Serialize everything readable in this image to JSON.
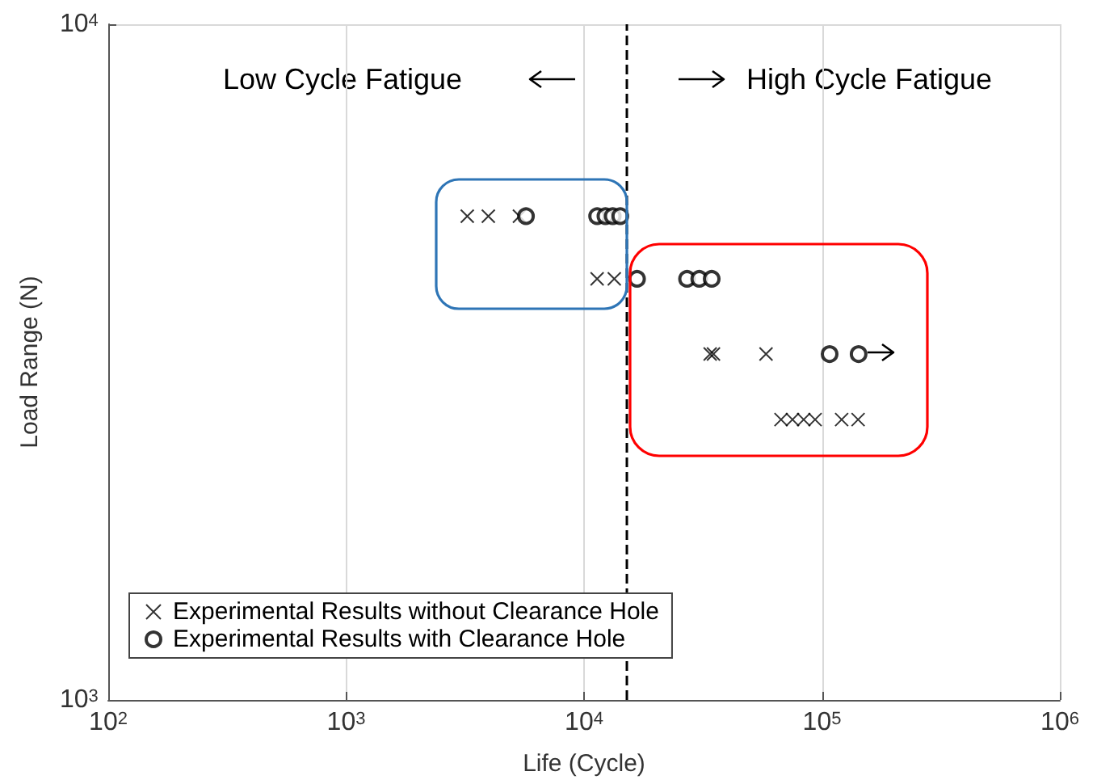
{
  "chart_data": {
    "type": "scatter",
    "xlabel": "Life (Cycle)",
    "ylabel": "Load Range (N)",
    "log": "xy",
    "grid": true,
    "legend": "bottom left",
    "xlim": [
      100,
      1000000
    ],
    "xticks": [
      {
        "value": 100,
        "label": "10$^{2}$"
      },
      {
        "value": 1000,
        "label": "10$^{3}$"
      },
      {
        "value": 10000,
        "label": "10$^{4}$"
      },
      {
        "value": 100000,
        "label": "10$^{5}$"
      },
      {
        "value": 1000000,
        "label": "10$^{6}$"
      }
    ],
    "ylim": [
      1000,
      10000
    ],
    "yticks": [
      {
        "value": 1000,
        "label": "10$^{3}$"
      },
      {
        "value": 10000,
        "label": "10$^{4}$"
      }
    ],
    "series": [
      {
        "name": "Experimental Results without Clearance Hole",
        "color": "#000000",
        "marker": "cross",
        "x": [
          3230,
          3960,
          5350,
          11350,
          13400,
          33900,
          35000,
          58200,
          67300,
          75200,
          83800,
          93600,
          121000,
          141900
        ],
        "values": [
          5200,
          5200,
          5200,
          4200,
          4200,
          3250,
          3250,
          3250,
          2600,
          2600,
          2600,
          2600,
          2600,
          2600
        ]
      },
      {
        "name": "Experimental Results with Clearance Hole",
        "color": "#000000",
        "marker": "circle",
        "x": [
          5700,
          11350,
          12300,
          13200,
          14200,
          16700,
          27100,
          30500,
          34400,
          107700,
          142600
        ],
        "values": [
          5200,
          5200,
          5200,
          5200,
          5200,
          4200,
          4200,
          4200,
          4200,
          3250,
          3250
        ]
      }
    ],
    "ref_lines": [
      {
        "axis": "x",
        "value": 15000,
        "color": "#000000",
        "line_style": "dashed"
      }
    ],
    "annotations": [
      "Low Cycle Fatigue",
      "High Cycle Fatigue"
    ]
  }
}
